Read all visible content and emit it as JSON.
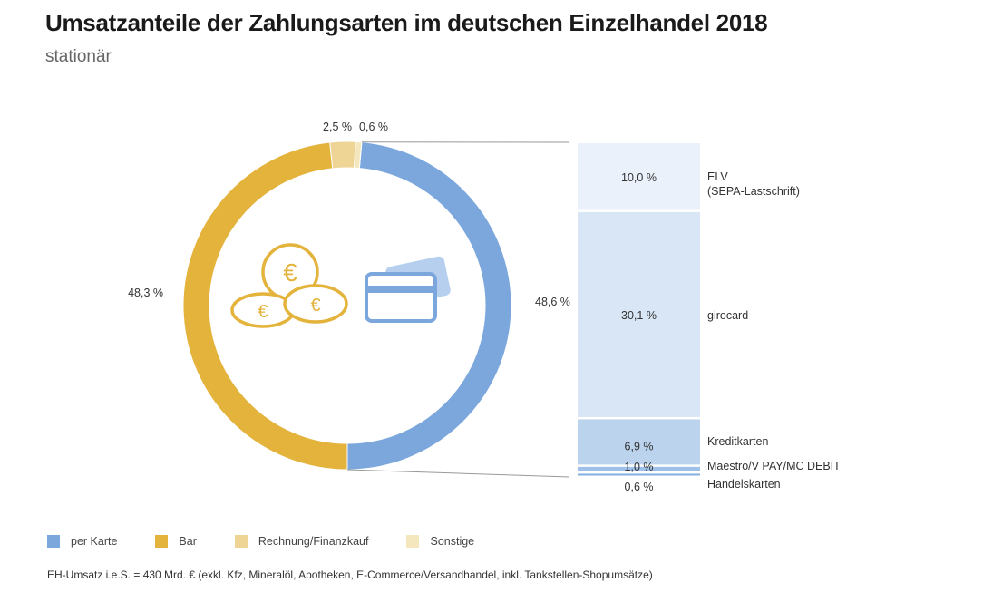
{
  "chart_data": {
    "type": "pie",
    "title": "Umsatzanteile der Zahlungsarten im deutschen Einzelhandel 2018",
    "subtitle": "stationär",
    "donut": [
      {
        "name": "per Karte",
        "value": 48.6,
        "label": "48,6 %",
        "color": "#7ba7dc"
      },
      {
        "name": "Bar",
        "value": 48.3,
        "label": "48,3 %",
        "color": "#e3b33b"
      },
      {
        "name": "Rechnung/Finanzkauf",
        "value": 2.5,
        "label": "2,5 %",
        "color": "#eed596"
      },
      {
        "name": "Sonstige",
        "value": 0.6,
        "label": "0,6 %",
        "color": "#f4e6bd"
      }
    ],
    "breakdown_of": "per Karte",
    "breakdown": [
      {
        "name": "ELV\n(SEPA-Lastschrift)",
        "line1": "ELV",
        "line2": "(SEPA-Lastschrift)",
        "value": 10.0,
        "label": "10,0 %",
        "color": "#eaf1fb"
      },
      {
        "name": "girocard",
        "line1": "girocard",
        "value": 30.1,
        "label": "30,1 %",
        "color": "#d9e6f6"
      },
      {
        "name": "Kreditkarten",
        "line1": "Kreditkarten",
        "value": 6.9,
        "label": "6,9 %",
        "color": "#bcd3ee"
      },
      {
        "name": "Maestro/V PAY/MC DEBIT",
        "line1": "Maestro/V PAY/MC DEBIT",
        "value": 1.0,
        "label": "1,0 %",
        "color": "#9fc0e8"
      },
      {
        "name": "Handelskarten",
        "line1": "Handelskarten",
        "value": 0.6,
        "label": "0,6 %",
        "color": "#86b0e2"
      }
    ],
    "legend_placement": "bottom-left"
  },
  "legend": [
    "per Karte",
    "Bar",
    "Rechnung/Finanzkauf",
    "Sonstige"
  ],
  "note": "EH-Umsatz i.e.S. = 430 Mrd. € (exkl. Kfz, Mineralöl, Apotheken, E-Commerce/Versandhandel, inkl. Tankstellen-Shopumsätze)",
  "icons": [
    "euro-coins-icon",
    "credit-card-icon"
  ]
}
